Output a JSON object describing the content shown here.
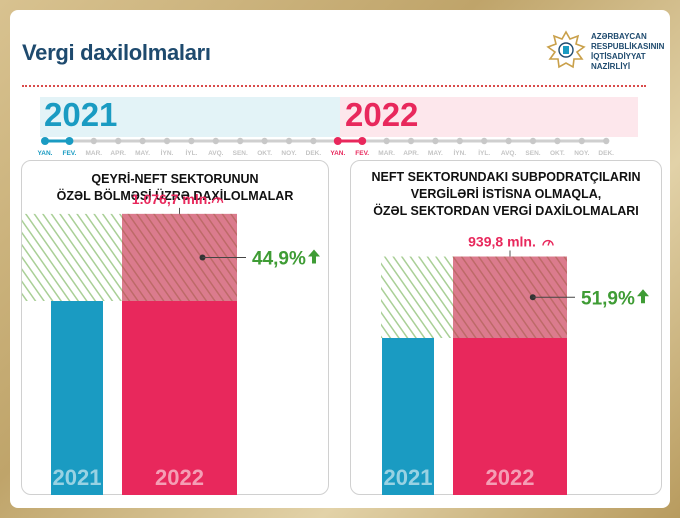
{
  "header": {
    "title": "Vergi daxilolmaları",
    "ministry_lines": [
      "AZƏRBAYCAN",
      "RESPUBLİKASININ",
      "İQTİSADİYYAT",
      "NAZİRLİYİ"
    ]
  },
  "timeline": {
    "year_2021": "2021",
    "year_2022": "2022",
    "months": [
      "YAN.",
      "FEV.",
      "MAR.",
      "APR.",
      "MAY.",
      "İYN.",
      "İYL.",
      "AVQ.",
      "SEN.",
      "OKT.",
      "NOY.",
      "DEK."
    ]
  },
  "colors": {
    "teal": "#1a9bc2",
    "pink": "#e8285c",
    "green": "#3f9c35",
    "navy": "#1e4a6e"
  },
  "chart_data": [
    {
      "type": "bar",
      "title_lines": [
        "QEYRİ-NEFT SEKTORUNUN",
        "ÖZƏL BÖLMƏSİ ÜZRƏ DAXİLOLMALAR"
      ],
      "categories": [
        "2021",
        "2022"
      ],
      "value_label": "1.076,7 mln.",
      "growth_label": "44,9%",
      "growth_pct": 44.9,
      "values_relative": [
        1.0,
        1.449
      ]
    },
    {
      "type": "bar",
      "title_lines": [
        "NEFT SEKTORUNDAKI SUBPODRATÇILARIN",
        "VERGİLƏRİ İSTİSNA OLMAQLA,",
        "ÖZƏL SEKTORDAN VERGİ DAXİLOLMALARI"
      ],
      "categories": [
        "2021",
        "2022"
      ],
      "value_label": "939,8 mln.",
      "growth_label": "51,9%",
      "growth_pct": 51.9,
      "values_relative": [
        1.0,
        1.519
      ]
    }
  ]
}
